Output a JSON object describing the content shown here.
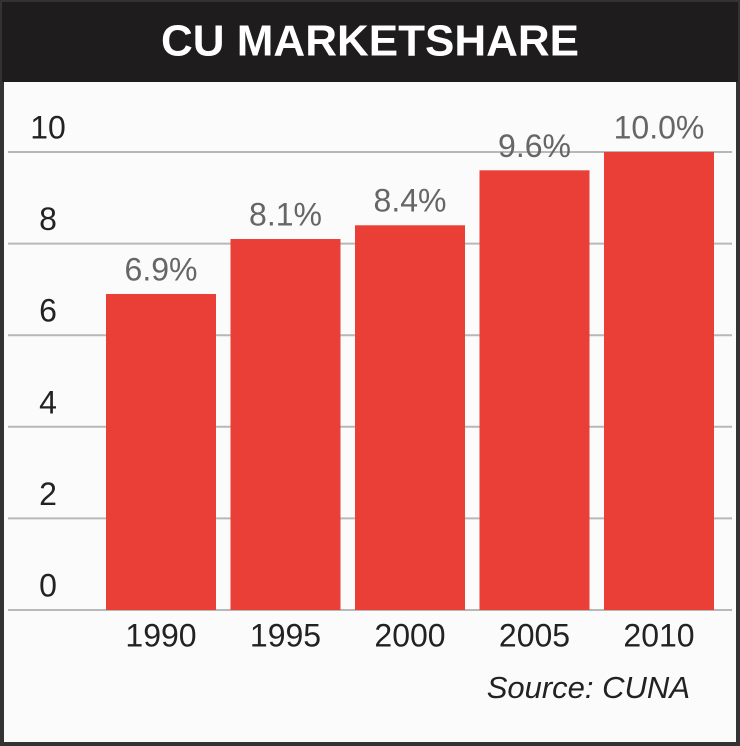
{
  "chart_data": {
    "type": "bar",
    "title": "CU MARKETSHARE",
    "categories": [
      "1990",
      "1995",
      "2000",
      "2005",
      "2010"
    ],
    "values": [
      6.9,
      8.1,
      8.4,
      9.6,
      10.0
    ],
    "value_labels": [
      "6.9%",
      "8.1%",
      "8.4%",
      "9.6%",
      "10.0%"
    ],
    "color": "#ea3f37",
    "ylim": [
      0,
      10
    ],
    "yticks": [
      0,
      2,
      4,
      6,
      8,
      10
    ],
    "grid": true,
    "source": "Source: CUNA"
  }
}
